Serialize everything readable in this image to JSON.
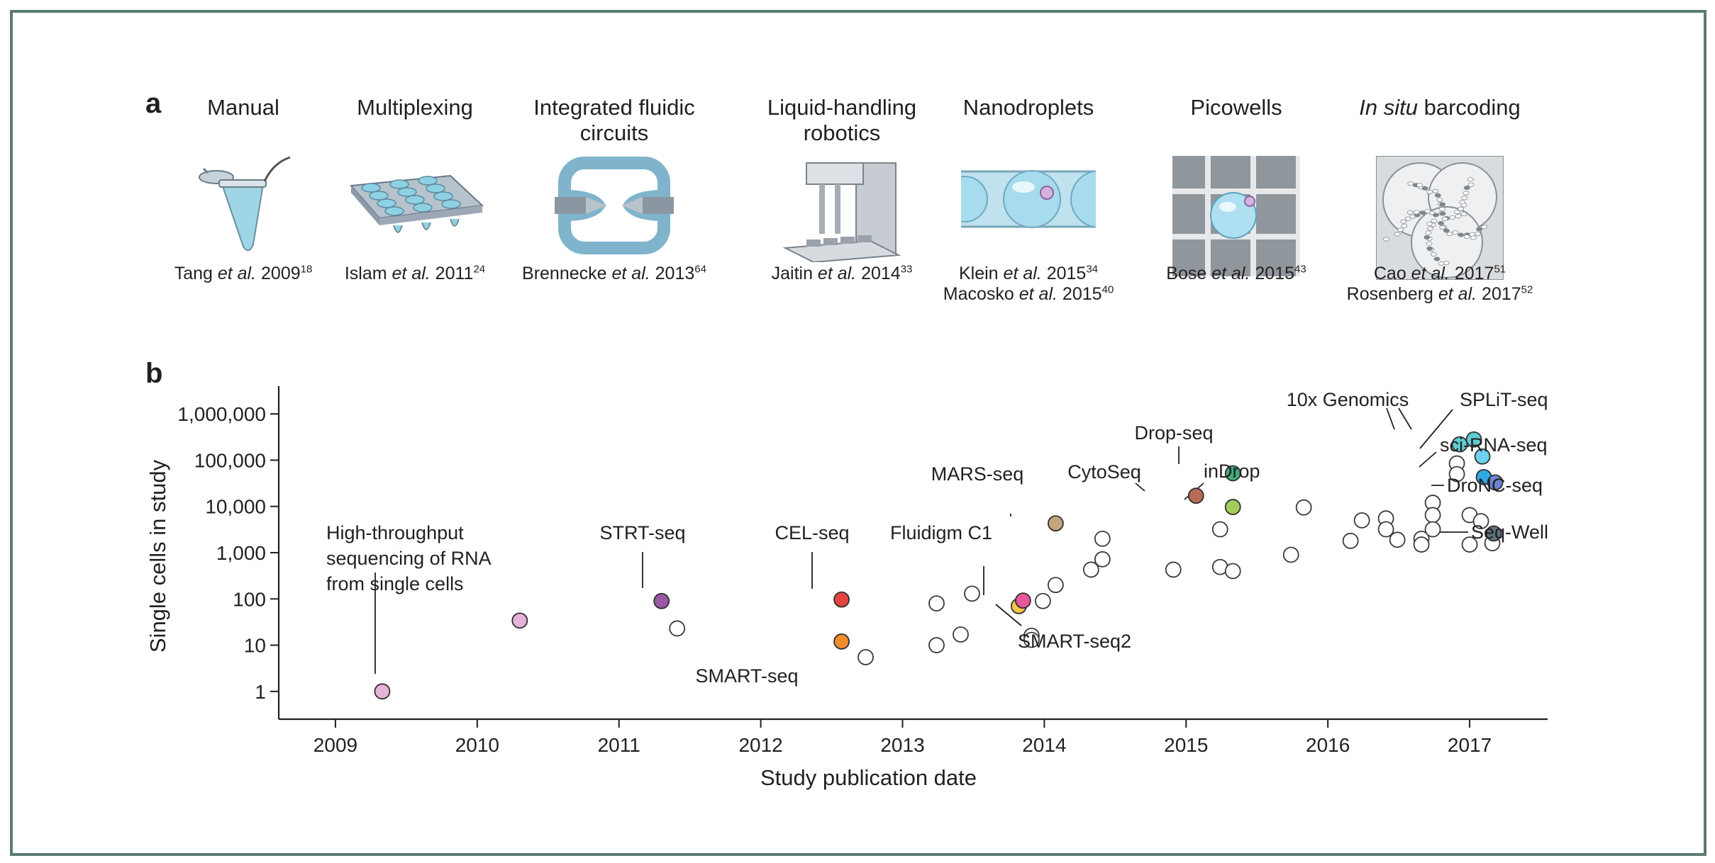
{
  "panel_a": {
    "label": "a",
    "techniques": [
      {
        "id": "manual",
        "title_lines": [
          "Manual"
        ],
        "title_italic": "",
        "citations": [
          {
            "author": "Tang",
            "year": "2009",
            "ref": "18"
          }
        ],
        "icon": "microcentrifuge-tube-icon"
      },
      {
        "id": "multiplexing",
        "title_lines": [
          "Multiplexing"
        ],
        "title_italic": "",
        "citations": [
          {
            "author": "Islam",
            "year": "2011",
            "ref": "24"
          }
        ],
        "icon": "multiwell-plate-icon"
      },
      {
        "id": "ifc",
        "title_lines": [
          "Integrated fluidic",
          "circuits"
        ],
        "title_italic": "",
        "citations": [
          {
            "author": "Brennecke",
            "year": "2013",
            "ref": "64"
          }
        ],
        "icon": "fluidic-circuit-icon"
      },
      {
        "id": "robotics",
        "title_lines": [
          "Liquid-handling",
          "robotics"
        ],
        "title_italic": "",
        "citations": [
          {
            "author": "Jaitin",
            "year": "2014",
            "ref": "33"
          }
        ],
        "icon": "liquid-handling-robot-icon"
      },
      {
        "id": "nanodroplets",
        "title_lines": [
          "Nanodroplets"
        ],
        "title_italic": "",
        "citations": [
          {
            "author": "Klein",
            "year": "2015",
            "ref": "34"
          },
          {
            "author": "Macosko",
            "year": "2015",
            "ref": "40"
          }
        ],
        "icon": "nanodroplet-channel-icon"
      },
      {
        "id": "picowells",
        "title_lines": [
          "Picowells"
        ],
        "title_italic": "",
        "citations": [
          {
            "author": "Bose",
            "year": "2015",
            "ref": "43"
          }
        ],
        "icon": "picowell-grid-icon"
      },
      {
        "id": "insitu",
        "title_lines": [
          "barcoding"
        ],
        "title_italic": "In situ",
        "citations": [
          {
            "author": "Cao",
            "year": "2017",
            "ref": "51"
          },
          {
            "author": "Rosenberg",
            "year": "2017",
            "ref": "52"
          }
        ],
        "icon": "in-situ-cells-icon"
      }
    ],
    "et_al": "et al."
  },
  "panel_b": {
    "label": "b"
  },
  "chart_data": {
    "type": "scatter",
    "xlabel": "Study publication date",
    "ylabel": "Single cells in study",
    "xlim": [
      2008.6,
      2017.55
    ],
    "ylim_log10": [
      -0.6,
      6.6
    ],
    "x_ticks": [
      2009,
      2010,
      2011,
      2012,
      2013,
      2014,
      2015,
      2016,
      2017
    ],
    "y_ticks": [
      {
        "value": 1,
        "label": "1"
      },
      {
        "value": 10,
        "label": "10"
      },
      {
        "value": 100,
        "label": "100"
      },
      {
        "value": 1000,
        "label": "1,000"
      },
      {
        "value": 10000,
        "label": "10,000"
      },
      {
        "value": 100000,
        "label": "100,000"
      },
      {
        "value": 1000000,
        "label": "1,000,000"
      }
    ],
    "y_scale": "log",
    "highlighted_points": [
      {
        "x": 2009.33,
        "y": 1,
        "color": "#e7b2d8"
      },
      {
        "x": 2010.3,
        "y": 34,
        "color": "#e7b2d8"
      },
      {
        "x": 2011.3,
        "y": 90,
        "color": "#9b58a4"
      },
      {
        "x": 2012.57,
        "y": 97,
        "color": "#e3443f"
      },
      {
        "x": 2012.57,
        "y": 12,
        "color": "#f08c2e"
      },
      {
        "x": 2013.82,
        "y": 70,
        "color": "#f9c54a"
      },
      {
        "x": 2013.85,
        "y": 92,
        "color": "#e6579c"
      },
      {
        "x": 2014.08,
        "y": 4300,
        "color": "#c3a47c"
      },
      {
        "x": 2015.07,
        "y": 17000,
        "color": "#b86a56"
      },
      {
        "x": 2015.33,
        "y": 52000,
        "color": "#42ac7e"
      },
      {
        "x": 2015.33,
        "y": 9700,
        "color": "#a3cd5a"
      },
      {
        "x": 2016.93,
        "y": 220000,
        "color": "#5dcdd3"
      },
      {
        "x": 2017.03,
        "y": 280000,
        "color": "#5dcdd3"
      },
      {
        "x": 2017.09,
        "y": 120000,
        "color": "#6fd1ef"
      },
      {
        "x": 2017.1,
        "y": 43000,
        "color": "#2fa9e2"
      },
      {
        "x": 2017.18,
        "y": 33000,
        "color": "#6b85d0"
      },
      {
        "x": 2017.17,
        "y": 2600,
        "color": "#5d747c"
      }
    ],
    "other_points": [
      {
        "x": 2011.41,
        "y": 23
      },
      {
        "x": 2012.74,
        "y": 5.5
      },
      {
        "x": 2013.24,
        "y": 80
      },
      {
        "x": 2013.24,
        "y": 10
      },
      {
        "x": 2013.41,
        "y": 17
      },
      {
        "x": 2013.49,
        "y": 130
      },
      {
        "x": 2013.91,
        "y": 16
      },
      {
        "x": 2013.91,
        "y": 13
      },
      {
        "x": 2013.99,
        "y": 90
      },
      {
        "x": 2014.08,
        "y": 200
      },
      {
        "x": 2014.33,
        "y": 430
      },
      {
        "x": 2014.41,
        "y": 720
      },
      {
        "x": 2014.41,
        "y": 2000
      },
      {
        "x": 2014.91,
        "y": 430
      },
      {
        "x": 2015.24,
        "y": 3200
      },
      {
        "x": 2015.24,
        "y": 490
      },
      {
        "x": 2015.33,
        "y": 400
      },
      {
        "x": 2015.74,
        "y": 900
      },
      {
        "x": 2015.83,
        "y": 9500
      },
      {
        "x": 2016.16,
        "y": 1800
      },
      {
        "x": 2016.24,
        "y": 5000
      },
      {
        "x": 2016.41,
        "y": 5500
      },
      {
        "x": 2016.41,
        "y": 3200
      },
      {
        "x": 2016.49,
        "y": 1900
      },
      {
        "x": 2016.66,
        "y": 2000
      },
      {
        "x": 2016.66,
        "y": 1500
      },
      {
        "x": 2016.74,
        "y": 12000
      },
      {
        "x": 2016.74,
        "y": 6500
      },
      {
        "x": 2016.74,
        "y": 3200
      },
      {
        "x": 2016.91,
        "y": 85000
      },
      {
        "x": 2016.91,
        "y": 50000
      },
      {
        "x": 2017.0,
        "y": 6500
      },
      {
        "x": 2017.0,
        "y": 1500
      },
      {
        "x": 2017.08,
        "y": 4800
      },
      {
        "x": 2017.16,
        "y": 1600
      }
    ],
    "annotations": [
      {
        "lines": [
          "High-throughput",
          "sequencing of RNA",
          "from single cells"
        ]
      },
      {
        "lines": [
          "STRT-seq"
        ]
      },
      {
        "lines": [
          "CEL-seq"
        ]
      },
      {
        "lines": [
          "SMART-seq"
        ]
      },
      {
        "lines": [
          "Fluidigm C1"
        ]
      },
      {
        "lines": [
          "SMART-seq2"
        ]
      },
      {
        "lines": [
          "MARS-seq"
        ]
      },
      {
        "lines": [
          "CytoSeq"
        ]
      },
      {
        "lines": [
          "Drop-seq"
        ]
      },
      {
        "lines": [
          "inDrop"
        ]
      },
      {
        "lines": [
          "10x Genomics"
        ]
      },
      {
        "lines": [
          "SPLiT-seq"
        ]
      },
      {
        "lines": [
          "sci-RNA-seq"
        ]
      },
      {
        "lines": [
          "DroNC-seq"
        ]
      },
      {
        "lines": [
          "Seq-Well"
        ]
      }
    ],
    "colors": {
      "axis": "#231f20",
      "open_marker_stroke": "#3a3a3a",
      "leader_line": "#231f20",
      "frame": "#5b7b74"
    }
  }
}
